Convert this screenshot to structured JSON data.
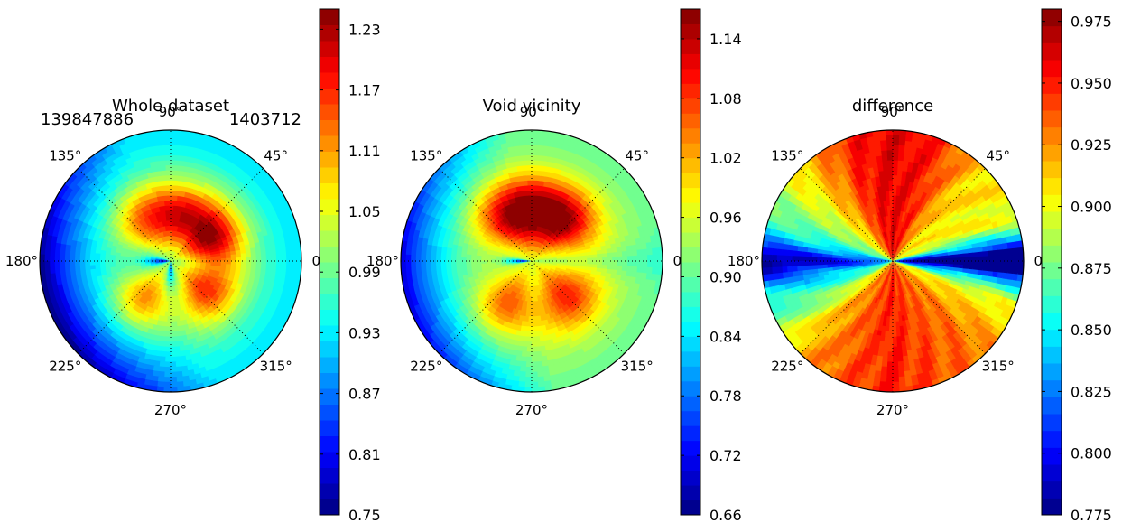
{
  "chart_data": [
    {
      "type": "heatmap",
      "subtype": "polar-contourf",
      "title": "Whole dataset",
      "annotations": {
        "left": "139847886",
        "right": "1403712"
      },
      "angle_ticks": [
        "0°",
        "45°",
        "90°",
        "135°",
        "180°",
        "225°",
        "270°",
        "315°"
      ],
      "grid": true,
      "colormap": "jet",
      "colorbar": {
        "range": [
          0.75,
          1.25
        ],
        "ticks": [
          "0.75",
          "0.81",
          "0.87",
          "0.93",
          "0.99",
          "1.05",
          "1.11",
          "1.17",
          "1.23"
        ],
        "levels": 32
      },
      "hot_spots": [
        {
          "angle_deg": 30,
          "peak": 1.23
        },
        {
          "angle_deg": 80,
          "peak": 1.17
        },
        {
          "angle_deg": 125,
          "peak": 1.13
        },
        {
          "angle_deg": 235,
          "peak": 1.13
        },
        {
          "angle_deg": 320,
          "peak": 1.17
        }
      ],
      "cold_spots": [
        {
          "angle_deg": 180,
          "trough": 0.78
        },
        {
          "angle_deg": 270,
          "trough": 0.84
        }
      ]
    },
    {
      "type": "heatmap",
      "subtype": "polar-contourf",
      "title": "Void vicinity",
      "angle_ticks": [
        "0°",
        "45°",
        "90°",
        "135°",
        "180°",
        "225°",
        "270°",
        "315°"
      ],
      "grid": true,
      "colormap": "jet",
      "colorbar": {
        "range": [
          0.66,
          1.17
        ],
        "ticks": [
          "0.66",
          "0.72",
          "0.78",
          "0.84",
          "0.90",
          "0.96",
          "1.02",
          "1.08",
          "1.14"
        ],
        "levels": 34
      },
      "hot_spots": [
        {
          "angle_deg": 50,
          "peak": 1.15
        },
        {
          "angle_deg": 90,
          "peak": 1.14
        },
        {
          "angle_deg": 125,
          "peak": 1.1
        },
        {
          "angle_deg": 240,
          "peak": 1.08
        },
        {
          "angle_deg": 315,
          "peak": 1.1
        }
      ],
      "cold_spots": [
        {
          "angle_deg": 180,
          "trough": 0.68
        },
        {
          "angle_deg": 0,
          "trough": 0.9
        }
      ]
    },
    {
      "type": "heatmap",
      "subtype": "polar-contourf",
      "title": "difference",
      "angle_ticks": [
        "0°",
        "45°",
        "90°",
        "135°",
        "180°",
        "225°",
        "270°",
        "315°"
      ],
      "grid": true,
      "colormap": "jet",
      "colorbar": {
        "range": [
          0.775,
          0.98
        ],
        "ticks": [
          "0.775",
          "0.800",
          "0.825",
          "0.850",
          "0.875",
          "0.900",
          "0.925",
          "0.950",
          "0.975"
        ],
        "levels": 30
      },
      "sectors": [
        {
          "angle_deg": 0,
          "value": 0.78
        },
        {
          "angle_deg": 20,
          "value": 0.9
        },
        {
          "angle_deg": 45,
          "value": 0.91
        },
        {
          "angle_deg": 70,
          "value": 0.95
        },
        {
          "angle_deg": 90,
          "value": 0.96
        },
        {
          "angle_deg": 110,
          "value": 0.95
        },
        {
          "angle_deg": 135,
          "value": 0.91
        },
        {
          "angle_deg": 160,
          "value": 0.87
        },
        {
          "angle_deg": 180,
          "value": 0.82
        },
        {
          "angle_deg": 200,
          "value": 0.86
        },
        {
          "angle_deg": 225,
          "value": 0.92
        },
        {
          "angle_deg": 250,
          "value": 0.94
        },
        {
          "angle_deg": 270,
          "value": 0.95
        },
        {
          "angle_deg": 290,
          "value": 0.94
        },
        {
          "angle_deg": 315,
          "value": 0.93
        },
        {
          "angle_deg": 340,
          "value": 0.9
        }
      ]
    }
  ]
}
